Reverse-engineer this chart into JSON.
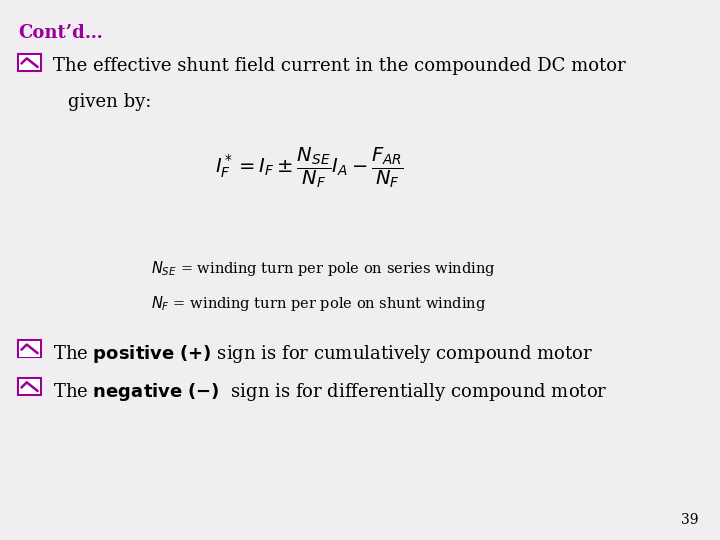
{
  "background_color": "#f0eef0",
  "title_text": "Cont’d…",
  "title_color": "#990099",
  "title_fontsize": 13,
  "bullet_color": "#990099",
  "text_color": "#000000",
  "body_fontsize": 13,
  "note_fontsize": 10.5,
  "formula_fontsize": 14,
  "page_number": "39",
  "note1_plain": "N",
  "note1_sub": "SE",
  "note1_rest": " = winding turn per pole on series winding",
  "note2_plain": "N",
  "note2_sub": "F",
  "note2_rest": " = winding turn per pole on shunt winding"
}
